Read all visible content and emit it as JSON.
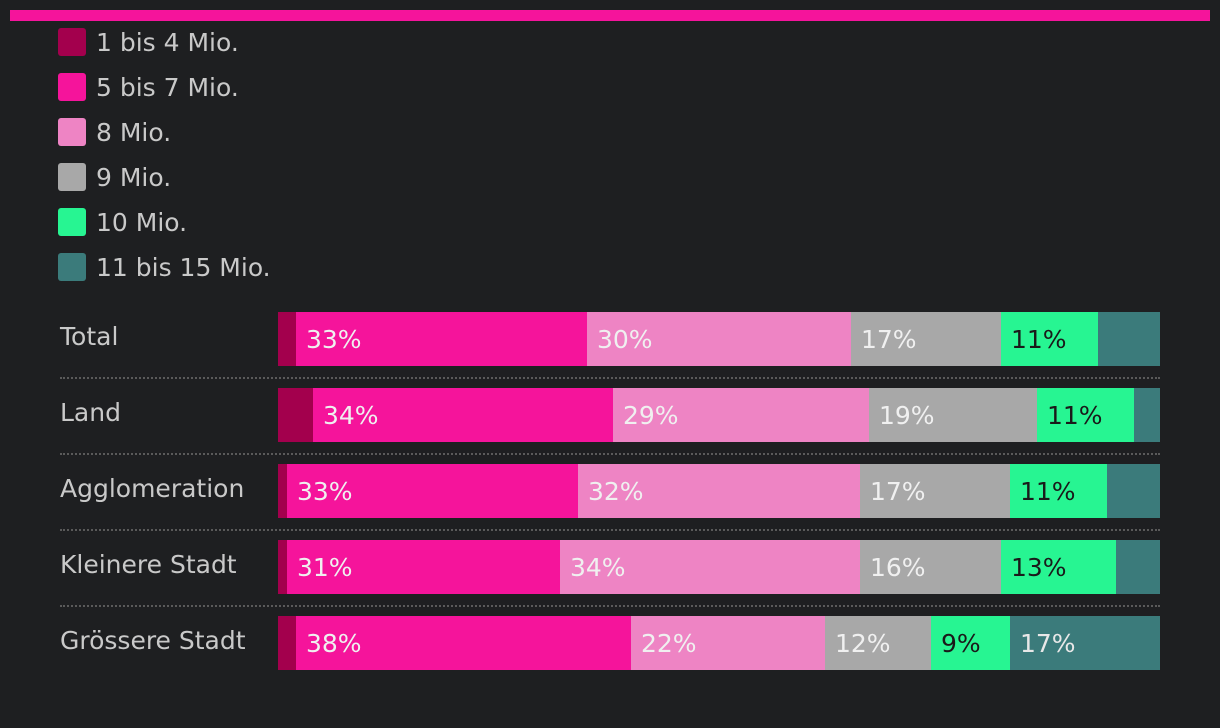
{
  "chart_data": {
    "type": "bar",
    "orientation": "horizontal",
    "stacked": true,
    "unit": "%",
    "categories": [
      "Total",
      "Land",
      "Agglomeration",
      "Kleinere Stadt",
      "Grössere Stadt"
    ],
    "series": [
      {
        "name": "1 bis 4 Mio.",
        "color": "#a3004d",
        "values": [
          2,
          4,
          1,
          1,
          2
        ]
      },
      {
        "name": "5 bis 7 Mio.",
        "color": "#f5149b",
        "values": [
          33,
          34,
          33,
          31,
          38
        ]
      },
      {
        "name": "8 Mio.",
        "color": "#ee84c4",
        "values": [
          30,
          29,
          32,
          34,
          22
        ]
      },
      {
        "name": "9 Mio.",
        "color": "#a8a8a8",
        "values": [
          17,
          19,
          17,
          16,
          12
        ]
      },
      {
        "name": "10 Mio.",
        "color": "#27f592",
        "values": [
          11,
          11,
          11,
          13,
          9
        ]
      },
      {
        "name": "11 bis 15 Mio.",
        "color": "#3b7b7b",
        "values": [
          7,
          3,
          6,
          5,
          17
        ]
      }
    ],
    "data_labels": [
      [
        "",
        "33%",
        "30%",
        "17%",
        "11%",
        ""
      ],
      [
        "",
        "34%",
        "29%",
        "19%",
        "11%",
        ""
      ],
      [
        "",
        "33%",
        "32%",
        "17%",
        "11%",
        ""
      ],
      [
        "",
        "31%",
        "34%",
        "16%",
        "13%",
        ""
      ],
      [
        "",
        "38%",
        "22%",
        "12%",
        "9%",
        "17%"
      ]
    ],
    "label_colors": [
      "#f0f0f0",
      "#f0f0f0",
      "#f0f0f0",
      "#f0f0f0",
      "#1a1a1a",
      "#e8e8e8"
    ],
    "legend_position": "top-left",
    "grid": false
  },
  "accent_color": "#f5149b"
}
